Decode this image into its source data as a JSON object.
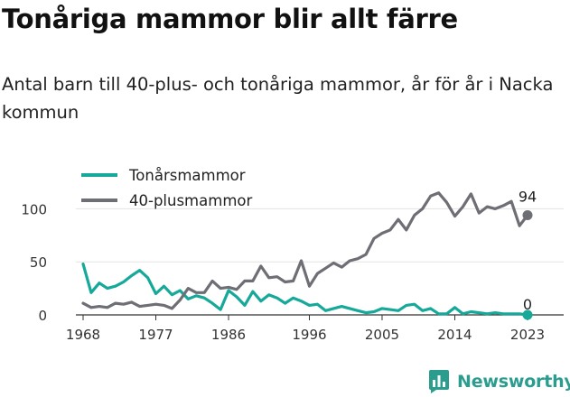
{
  "brand": {
    "name": "Newsworthy",
    "icon": "newsworthy-logo-icon",
    "color": "#2a9d8f"
  },
  "chart_data": {
    "type": "line",
    "title": "Tonåriga mammor blir allt färre",
    "subtitle": "Antal barn till 40-plus- och tonåriga mammor, år för år i Nacka kommun",
    "xlabel": "",
    "ylabel": "",
    "xlim": [
      1968,
      2023
    ],
    "ylim": [
      0,
      120
    ],
    "x_ticks": [
      "1968",
      "1977",
      "1986",
      "1996",
      "2005",
      "2014",
      "2023"
    ],
    "y_ticks": [
      "0",
      "50",
      "100"
    ],
    "grid": true,
    "legend": "top-left",
    "x": [
      1968,
      1969,
      1970,
      1971,
      1972,
      1973,
      1974,
      1975,
      1976,
      1977,
      1978,
      1979,
      1980,
      1981,
      1982,
      1983,
      1984,
      1985,
      1986,
      1987,
      1988,
      1989,
      1990,
      1991,
      1992,
      1993,
      1994,
      1995,
      1996,
      1997,
      1998,
      1999,
      2000,
      2001,
      2002,
      2003,
      2004,
      2005,
      2006,
      2007,
      2008,
      2009,
      2010,
      2011,
      2012,
      2013,
      2014,
      2015,
      2016,
      2017,
      2018,
      2019,
      2020,
      2021,
      2022,
      2023
    ],
    "series": [
      {
        "name": "Tonårsmammor",
        "color": "#16a99a",
        "values": [
          48,
          21,
          30,
          25,
          27,
          31,
          37,
          42,
          35,
          20,
          27,
          19,
          23,
          15,
          18,
          16,
          11,
          5,
          23,
          17,
          9,
          22,
          13,
          19,
          16,
          11,
          16,
          13,
          9,
          10,
          4,
          6,
          8,
          6,
          4,
          2,
          3,
          6,
          5,
          4,
          9,
          10,
          4,
          6,
          1,
          1,
          7,
          1,
          3,
          2,
          1,
          2,
          1,
          1,
          1,
          0
        ],
        "end_label": "0"
      },
      {
        "name": "40-plusmammor",
        "color": "#6e6e75",
        "values": [
          11,
          7,
          8,
          7,
          11,
          10,
          12,
          8,
          9,
          10,
          9,
          6,
          14,
          25,
          21,
          21,
          32,
          25,
          26,
          24,
          32,
          32,
          46,
          35,
          36,
          31,
          32,
          51,
          27,
          39,
          44,
          49,
          45,
          51,
          53,
          57,
          72,
          77,
          80,
          90,
          80,
          94,
          100,
          112,
          115,
          106,
          93,
          102,
          114,
          96,
          102,
          100,
          103,
          107,
          84,
          94
        ],
        "end_label": "94"
      }
    ]
  }
}
